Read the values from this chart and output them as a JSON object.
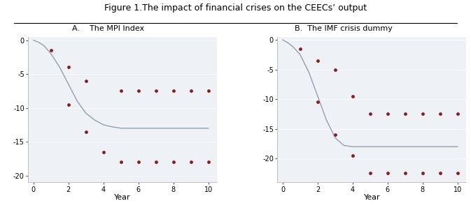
{
  "title": "Figure 1.The impact of financial crises on the CEECs’ output",
  "panel_A_title": "A.    The MPI Index",
  "panel_B_title": "B.  The IMF crisis dummy",
  "xlabel": "Year",
  "bg_color": "#eef2f6",
  "line_color": "#929faf",
  "dot_color": "#8b1a1a",
  "panel_A": {
    "line_x": [
      0,
      0.3,
      0.6,
      1.0,
      1.5,
      2.0,
      2.5,
      3.0,
      3.5,
      4.0,
      4.5,
      5,
      6,
      7,
      8,
      9,
      10
    ],
    "line_y": [
      0,
      -0.3,
      -0.8,
      -2.0,
      -4.0,
      -6.5,
      -9.0,
      -10.8,
      -11.8,
      -12.5,
      -12.8,
      -13.0,
      -13.0,
      -13.0,
      -13.0,
      -13.0,
      -13.0
    ],
    "dots_upper_x": [
      1,
      2,
      3,
      5,
      6,
      7,
      8,
      9,
      10
    ],
    "dots_upper_y": [
      -1.5,
      -4.0,
      -6.0,
      -7.5,
      -7.5,
      -7.5,
      -7.5,
      -7.5,
      -7.5
    ],
    "dots_lower_x": [
      2,
      3,
      4,
      5,
      6,
      7,
      8,
      9,
      10
    ],
    "dots_lower_y": [
      -9.5,
      -13.5,
      -16.5,
      -18.0,
      -18.0,
      -18.0,
      -18.0,
      -18.0,
      -18.0
    ],
    "ylim": [
      -21,
      0.5
    ],
    "yticks": [
      0,
      -5,
      -10,
      -15,
      -20
    ],
    "ytick_labels": [
      "0",
      "-5",
      "-10",
      "-15",
      "-20"
    ],
    "xlim": [
      -0.3,
      10.5
    ],
    "xticks": [
      0,
      2,
      4,
      6,
      8,
      10
    ]
  },
  "panel_B": {
    "line_x": [
      0,
      0.3,
      0.6,
      1.0,
      1.5,
      2.0,
      2.5,
      3.0,
      3.5,
      4.0,
      4.5,
      5,
      6,
      7,
      8,
      9,
      10
    ],
    "line_y": [
      0,
      -0.5,
      -1.2,
      -2.5,
      -5.5,
      -9.5,
      -13.5,
      -16.5,
      -17.8,
      -18.0,
      -18.0,
      -18.0,
      -18.0,
      -18.0,
      -18.0,
      -18.0,
      -18.0
    ],
    "dots_upper_x": [
      1,
      2,
      3,
      4,
      5,
      6,
      7,
      8,
      9,
      10
    ],
    "dots_upper_y": [
      -1.5,
      -3.5,
      -5.0,
      -9.5,
      -12.5,
      -12.5,
      -12.5,
      -12.5,
      -12.5,
      -12.5
    ],
    "dots_lower_x": [
      2,
      3,
      4,
      5,
      6,
      7,
      8,
      9,
      10
    ],
    "dots_lower_y": [
      -10.5,
      -16.0,
      -19.5,
      -22.5,
      -22.5,
      -22.5,
      -22.5,
      -22.5,
      -22.5
    ],
    "ylim": [
      -24,
      0.5
    ],
    "yticks": [
      0,
      -5,
      -10,
      -15,
      -20
    ],
    "ytick_labels": [
      "0",
      "-5",
      "-10",
      "-15",
      "-20"
    ],
    "xlim": [
      -0.3,
      10.5
    ],
    "xticks": [
      0,
      2,
      4,
      6,
      8,
      10
    ]
  }
}
